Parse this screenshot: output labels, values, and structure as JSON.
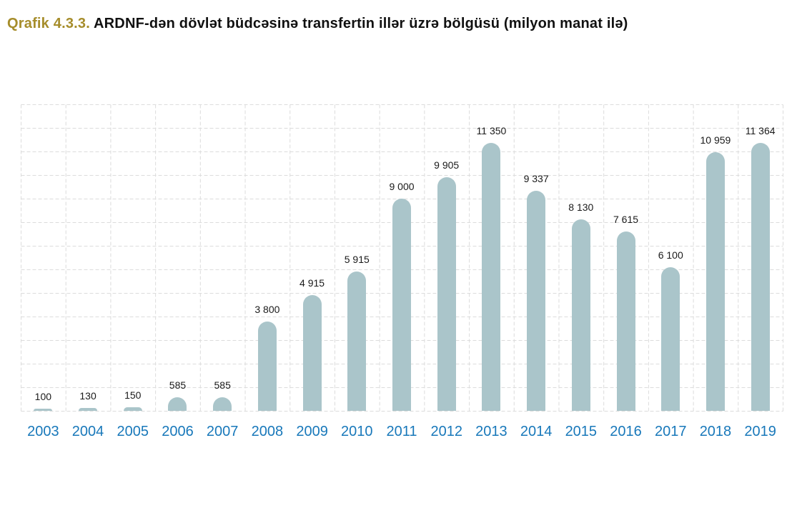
{
  "title": {
    "prefix": "Qrafik 4.3.3.",
    "text": " ARDNF-dən dövlət büdcəsinə transfertin illər üzrə bölgüsü (milyon manat ilə)"
  },
  "colors": {
    "bar_fill": "#aac5ca",
    "grid_line": "#dcdcdc",
    "year_label": "#1878ba",
    "value_label": "#1a1a1a",
    "title_accent": "#a68d2b",
    "title_text": "#111111",
    "background": "#ffffff"
  },
  "chart_data": {
    "type": "bar",
    "title": "ARDNF-dən dövlət büdcəsinə transfertin illər üzrə bölgüsü (milyon manat ilə)",
    "unit": "milyon manat",
    "categories": [
      "2003",
      "2004",
      "2005",
      "2006",
      "2007",
      "2008",
      "2009",
      "2010",
      "2011",
      "2012",
      "2013",
      "2014",
      "2015",
      "2016",
      "2017",
      "2018",
      "2019"
    ],
    "values": [
      100,
      130,
      150,
      585,
      585,
      3800,
      4915,
      5915,
      9000,
      9905,
      11350,
      9337,
      8130,
      7615,
      6100,
      10959,
      11364
    ],
    "value_labels": [
      "100",
      "130",
      "150",
      "585",
      "585",
      "3 800",
      "4 915",
      "5 915",
      "9 000",
      "9 905",
      "11 350",
      "9 337",
      "8 130",
      "7 615",
      "6 100",
      "10 959",
      "11 364"
    ],
    "xlabel": "",
    "ylabel": "",
    "ylim": [
      0,
      13000
    ],
    "grid": "dashed",
    "grid_step_y_units": 1000,
    "legend": "none"
  }
}
